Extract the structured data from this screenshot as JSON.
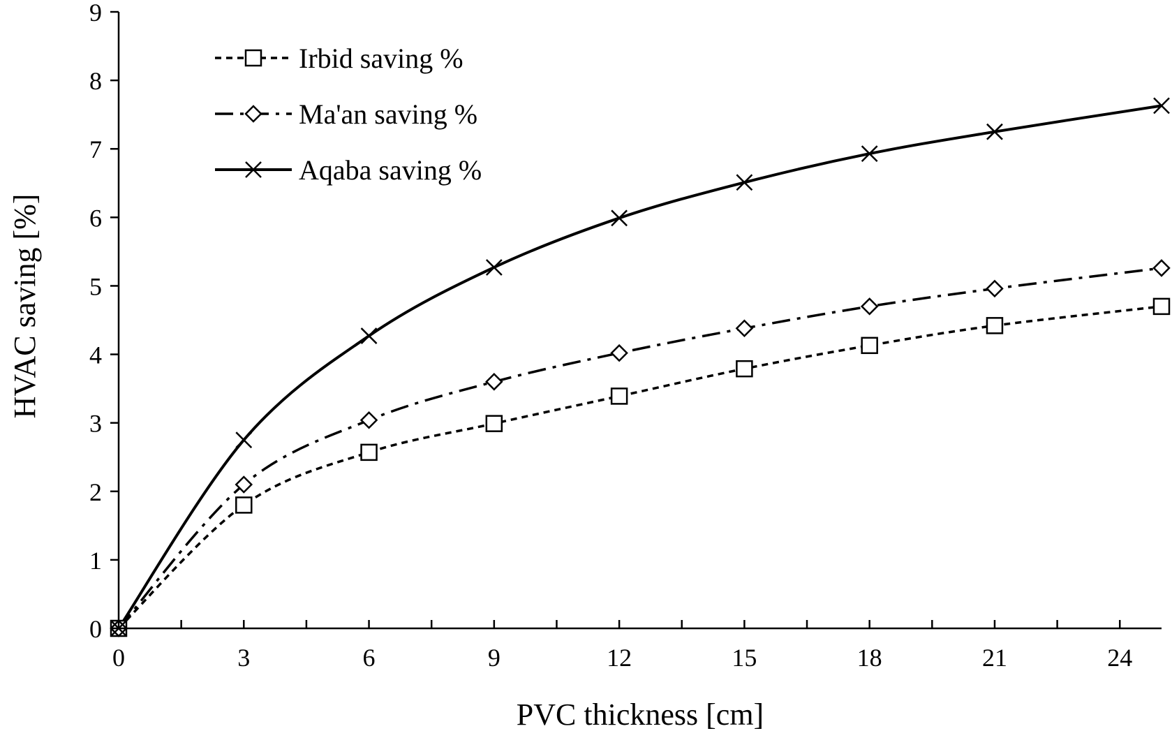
{
  "chart_data": {
    "type": "line",
    "title": "",
    "xlabel": "PVC thickness [cm]",
    "ylabel": "HVAC saving [%]",
    "xlim": [
      0,
      25
    ],
    "ylim": [
      0,
      9
    ],
    "x_ticks": [
      0,
      3,
      6,
      9,
      12,
      15,
      18,
      21,
      24
    ],
    "x_minor_step": 1.5,
    "y_ticks": [
      0,
      1,
      2,
      3,
      4,
      5,
      6,
      7,
      8,
      9
    ],
    "grid": false,
    "legend_position": "top-left",
    "series": [
      {
        "name": "Irbid saving %",
        "marker": "square",
        "line_style": "short-dash",
        "color": "#000000",
        "x": [
          0,
          3,
          6,
          9,
          12,
          15,
          18,
          21,
          25
        ],
        "y": [
          0,
          1.8,
          2.57,
          2.99,
          3.39,
          3.79,
          4.13,
          4.42,
          4.7
        ]
      },
      {
        "name": "Ma'an saving %",
        "marker": "diamond",
        "line_style": "dash-dot",
        "color": "#000000",
        "x": [
          0,
          3,
          6,
          9,
          12,
          15,
          18,
          21,
          25
        ],
        "y": [
          0,
          2.1,
          3.04,
          3.6,
          4.02,
          4.38,
          4.7,
          4.96,
          5.26
        ]
      },
      {
        "name": "Aqaba saving %",
        "marker": "x",
        "line_style": "solid",
        "color": "#000000",
        "x": [
          0,
          3,
          6,
          9,
          12,
          15,
          18,
          21,
          25
        ],
        "y": [
          0,
          2.75,
          4.27,
          5.27,
          5.99,
          6.51,
          6.93,
          7.25,
          7.63
        ]
      }
    ]
  }
}
